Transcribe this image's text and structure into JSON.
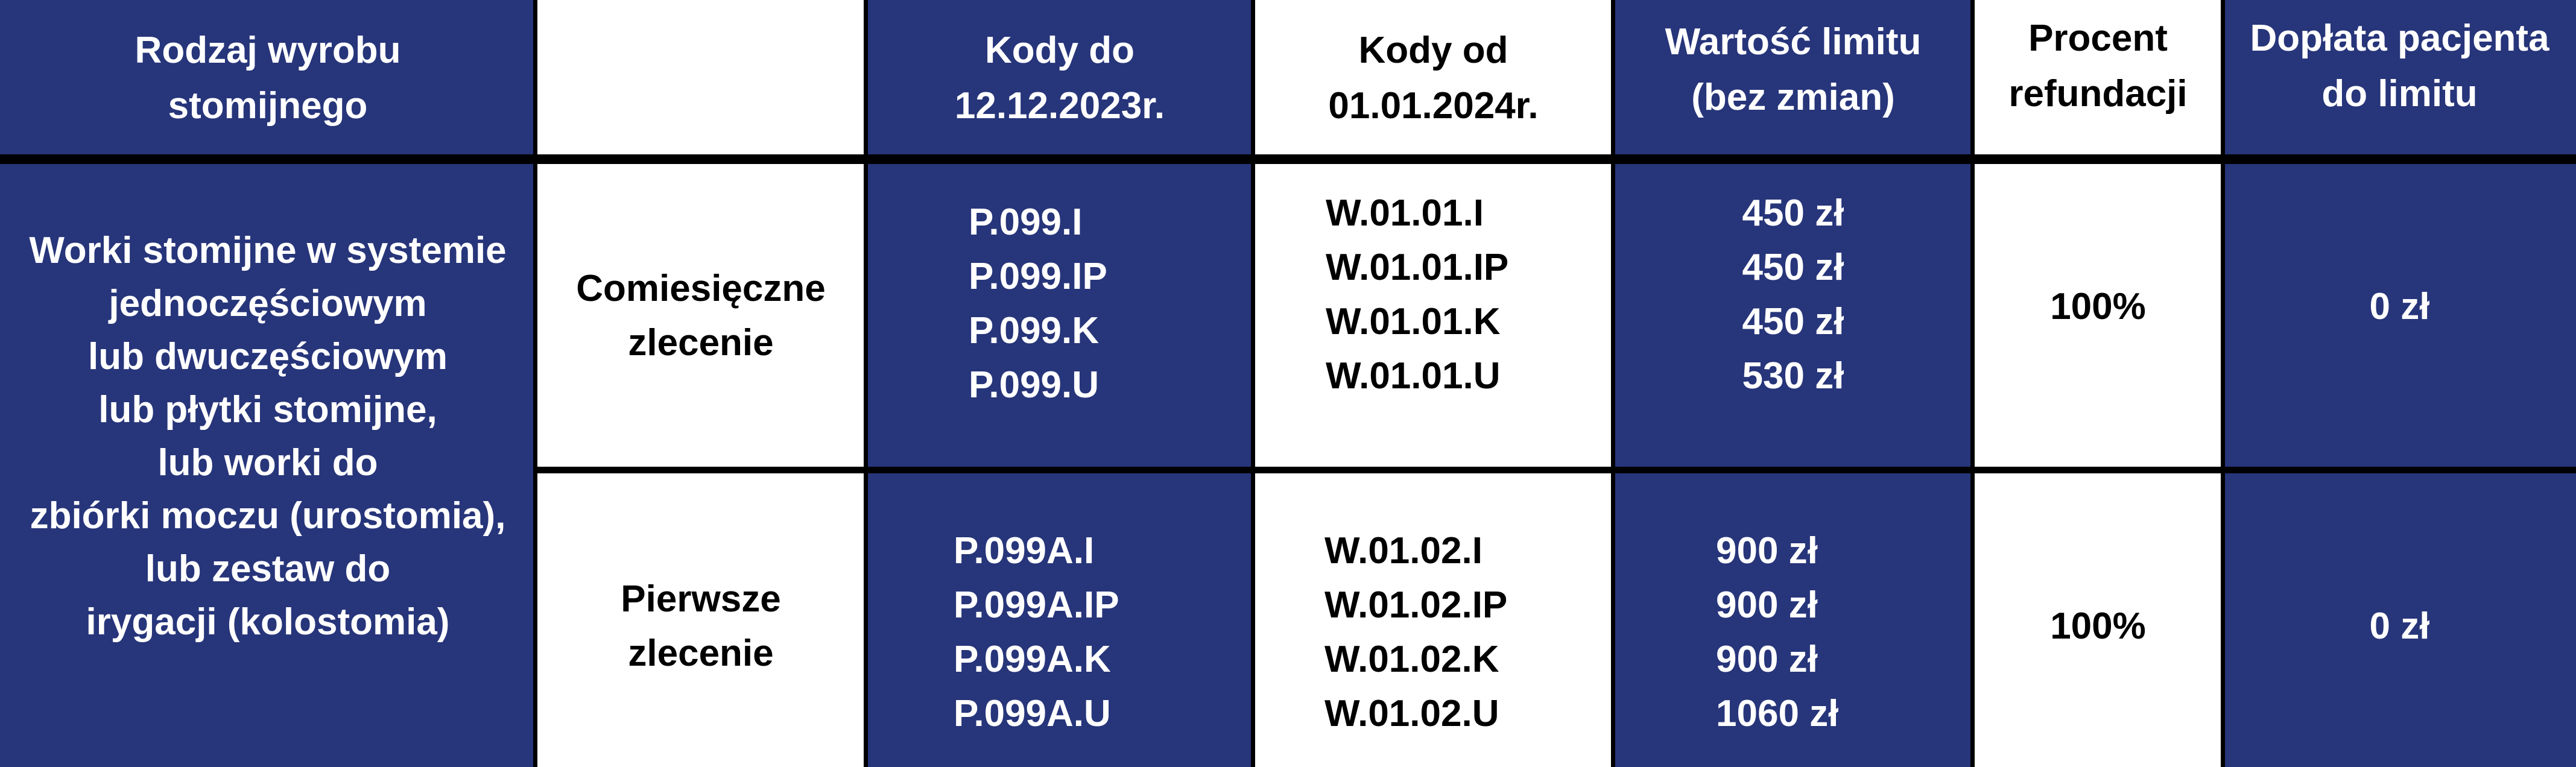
{
  "colors": {
    "navy": "#27357a",
    "white": "#ffffff",
    "border": "#000000"
  },
  "header": {
    "product_type": [
      "Rodzaj wyrobu",
      "stomijnego"
    ],
    "order_type": "",
    "codes_old": [
      "Kody do",
      "12.12.2023r."
    ],
    "codes_new": [
      "Kody od",
      "01.01.2024r."
    ],
    "limit_value": [
      "Wartość limitu",
      "(bez zmian)"
    ],
    "refund_percent": [
      "Procent",
      "refundacji"
    ],
    "patient_copay": [
      "Dopłata pacjenta",
      "do limitu"
    ]
  },
  "product_description": [
    "Worki stomijne w systemie",
    "jednoczęściowym",
    "lub dwuczęściowym",
    "lub płytki stomijne,",
    "lub worki do",
    "zbiórki moczu (urostomia),",
    "lub zestaw do",
    "irygacji (kolostomia)"
  ],
  "rows": [
    {
      "order_type": [
        "Comiesięczne",
        "zlecenie"
      ],
      "codes_old": [
        "P.099.I",
        "P.099.IP",
        "P.099.K",
        "P.099.U"
      ],
      "codes_new": [
        "W.01.01.I",
        "W.01.01.IP",
        "W.01.01.K",
        "W.01.01.U"
      ],
      "limits": [
        "450 zł",
        "450 zł",
        "450 zł",
        "530 zł"
      ],
      "refund_percent": "100%",
      "patient_copay": "0 zł"
    },
    {
      "order_type": [
        "Pierwsze",
        "zlecenie"
      ],
      "codes_old": [
        "P.099A.I",
        "P.099A.IP",
        "P.099A.K",
        "P.099A.U"
      ],
      "codes_new": [
        "W.01.02.I",
        "W.01.02.IP",
        "W.01.02.K",
        "W.01.02.U"
      ],
      "limits": [
        "900 zł",
        "900 zł",
        "900 zł",
        "1060 zł"
      ],
      "refund_percent": "100%",
      "patient_copay": "0 zł"
    }
  ]
}
